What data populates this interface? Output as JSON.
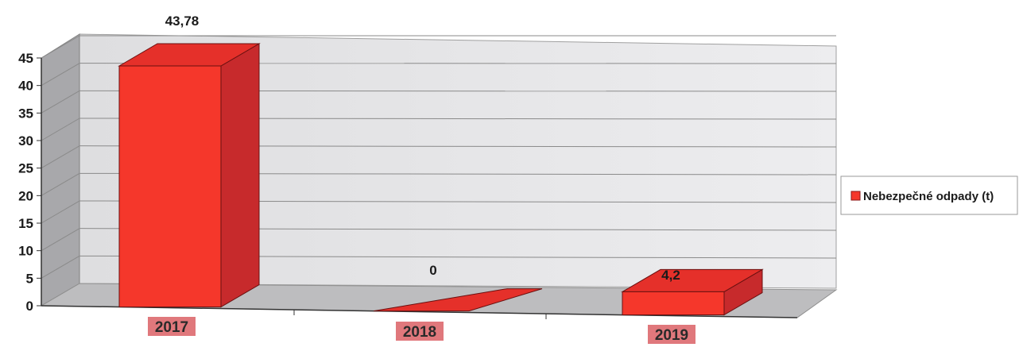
{
  "chart_data": {
    "type": "bar",
    "categories": [
      "2017",
      "2018",
      "2019"
    ],
    "series": [
      {
        "name": "Nebezpečné odpady (t)",
        "values": [
          43.78,
          0,
          4.2
        ]
      }
    ],
    "data_labels": [
      "43,78",
      "0",
      "4,2"
    ],
    "yticks": [
      "0",
      "5",
      "10",
      "15",
      "20",
      "25",
      "30",
      "35",
      "40",
      "45"
    ],
    "ylim": [
      0,
      45
    ],
    "xlabel": "",
    "ylabel": "",
    "title": "",
    "grid": true,
    "legend_position": "right",
    "style": "3d-clustered-column",
    "colors": {
      "bar_front": "#f5372b",
      "bar_top": "#e5302a",
      "bar_side": "#c72a2c",
      "category_label_bg": "#e0787c",
      "wall": "#e4e4e6",
      "floor": "#bdbdbf",
      "gridline": "#8a8a8a"
    }
  }
}
